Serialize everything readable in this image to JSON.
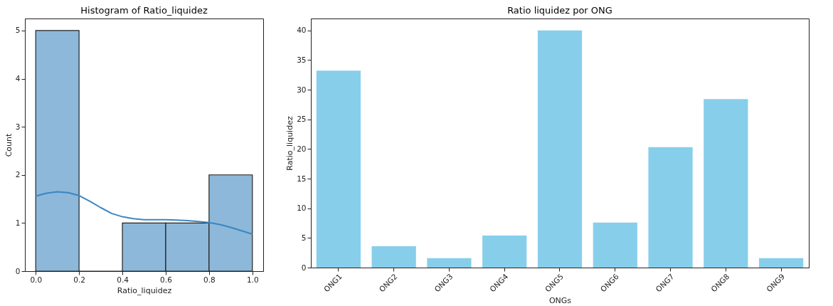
{
  "chart_data": [
    {
      "type": "histogram",
      "title": "Histogram of Ratio_liquidez",
      "xlabel": "Ratio_liquidez",
      "ylabel": "Count",
      "bins": [
        0,
        0.2,
        0.4,
        0.6,
        0.8,
        1.0
      ],
      "values": [
        5,
        0,
        1,
        1,
        2
      ],
      "color": "#8db8d9",
      "xlim": [
        -0.05,
        1.05
      ],
      "ylim": [
        0,
        5.25
      ],
      "xticks": [
        {
          "value": 0,
          "label": "0.0"
        },
        0.2,
        0.4,
        0.6,
        0.8,
        {
          "value": 1,
          "label": "1.0"
        }
      ],
      "yticks": [
        0,
        1,
        2,
        3,
        4,
        5
      ],
      "grid": false,
      "series": [
        {
          "type": "line",
          "color": "#3a86c4",
          "x": [
            0,
            0.05,
            0.1,
            0.15,
            0.2,
            0.25,
            0.3,
            0.35,
            0.4,
            0.45,
            0.5,
            0.55,
            0.6,
            0.65,
            0.7,
            0.75,
            0.8,
            0.85,
            0.9,
            0.95,
            1.0
          ],
          "values": [
            1.56,
            1.62,
            1.65,
            1.63,
            1.57,
            1.45,
            1.32,
            1.2,
            1.13,
            1.09,
            1.07,
            1.07,
            1.07,
            1.06,
            1.05,
            1.03,
            1.01,
            0.97,
            0.91,
            0.84,
            0.77
          ]
        }
      ]
    },
    {
      "type": "bar",
      "title": "Ratio liquidez por ONG",
      "xlabel": "ONGs",
      "ylabel": "Ratio_liquidez",
      "categories": [
        "ONG1",
        "ONG2",
        "ONG3",
        "ONG4",
        "ONG5",
        "ONG6",
        "ONG7",
        "ONG8",
        "ONG9"
      ],
      "values": [
        33.2,
        3.6,
        1.6,
        5.4,
        40.0,
        7.6,
        20.3,
        28.4,
        1.6
      ],
      "color": "#87ceeb",
      "ylim": [
        0,
        42
      ],
      "yticks": [
        0,
        5,
        10,
        15,
        20,
        25,
        30,
        35,
        40
      ],
      "grid": false
    }
  ]
}
